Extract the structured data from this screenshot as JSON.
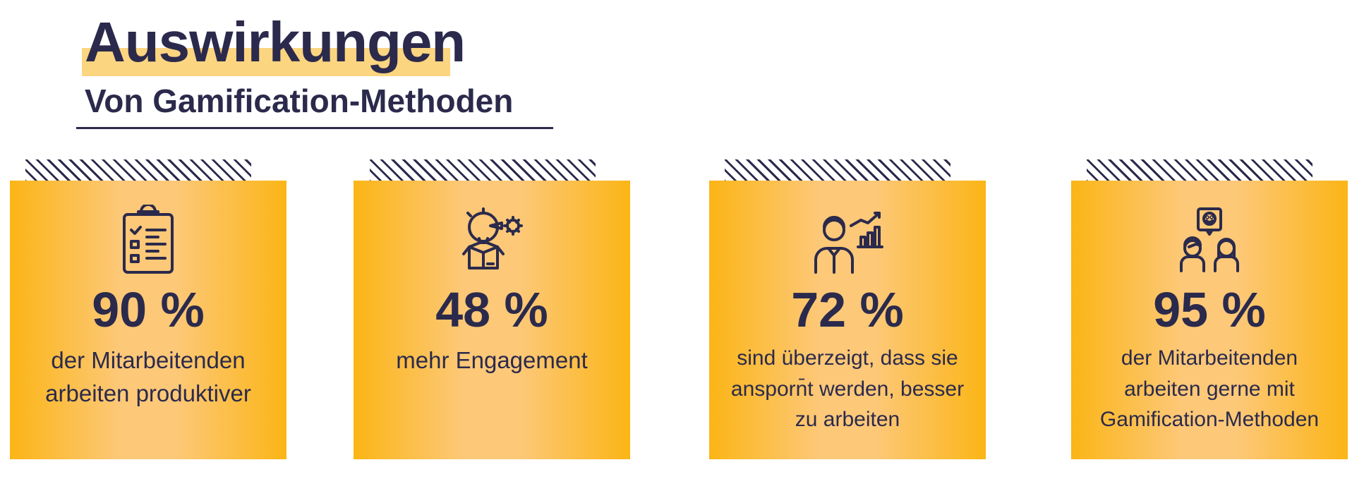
{
  "header": {
    "title": "Auswirkungen",
    "subtitle": "Von Gamification-Methoden"
  },
  "colors": {
    "accent": "#fbb516",
    "accent_light": "#fdc878",
    "highlight": "#fcd581",
    "ink": "#2b2a4c"
  },
  "cards": [
    {
      "icon": "clipboard-checklist-icon",
      "value": "90 %",
      "lines": [
        "der Mitarbeitenden",
        "arbeiten produktiver"
      ]
    },
    {
      "icon": "idea-box-gear-icon",
      "value": "48 %",
      "lines": [
        "mehr Engagement"
      ]
    },
    {
      "icon": "person-growth-chart-icon",
      "value": "72 %",
      "lines": [
        "sind überzeigt, dass sie",
        "ansporn̄t werden, besser",
        "zu arbeiten"
      ]
    },
    {
      "icon": "happy-team-icon",
      "value": "95 %",
      "lines": [
        "der Mitarbeitenden",
        "arbeiten gerne mit",
        "Gamification-Methoden"
      ]
    }
  ]
}
